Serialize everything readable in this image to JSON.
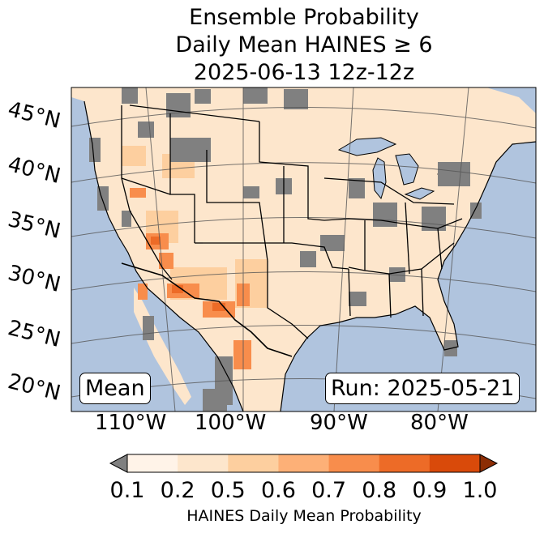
{
  "title": {
    "line1": "Ensemble Probability",
    "line2": "Daily Mean HAINES ≥ 6",
    "line3": "2025-06-13 12z-12z"
  },
  "map": {
    "lat_labels": [
      "45°N",
      "40°N",
      "35°N",
      "30°N",
      "25°N",
      "20°N"
    ],
    "lon_labels": [
      "110°W",
      "100°W",
      "90°W",
      "80°W"
    ],
    "mean_label": "Mean",
    "run_label": "Run: 2025-05-21",
    "colors": {
      "ocean": "#b0c4de",
      "land_base": "#fde6cc",
      "missing_gray": "#808080"
    }
  },
  "colorbar": {
    "ticks": [
      "0.1",
      "0.2",
      "0.5",
      "0.6",
      "0.7",
      "0.8",
      "0.9",
      "1.0"
    ],
    "colors": [
      "#fff3e8",
      "#fde6cc",
      "#fdcf9f",
      "#fdb077",
      "#f88d4c",
      "#ed6b27",
      "#d94a0a"
    ],
    "under_color": "#808080",
    "over_color": "#8c2d04",
    "label": "HAINES Daily Mean Probability"
  }
}
